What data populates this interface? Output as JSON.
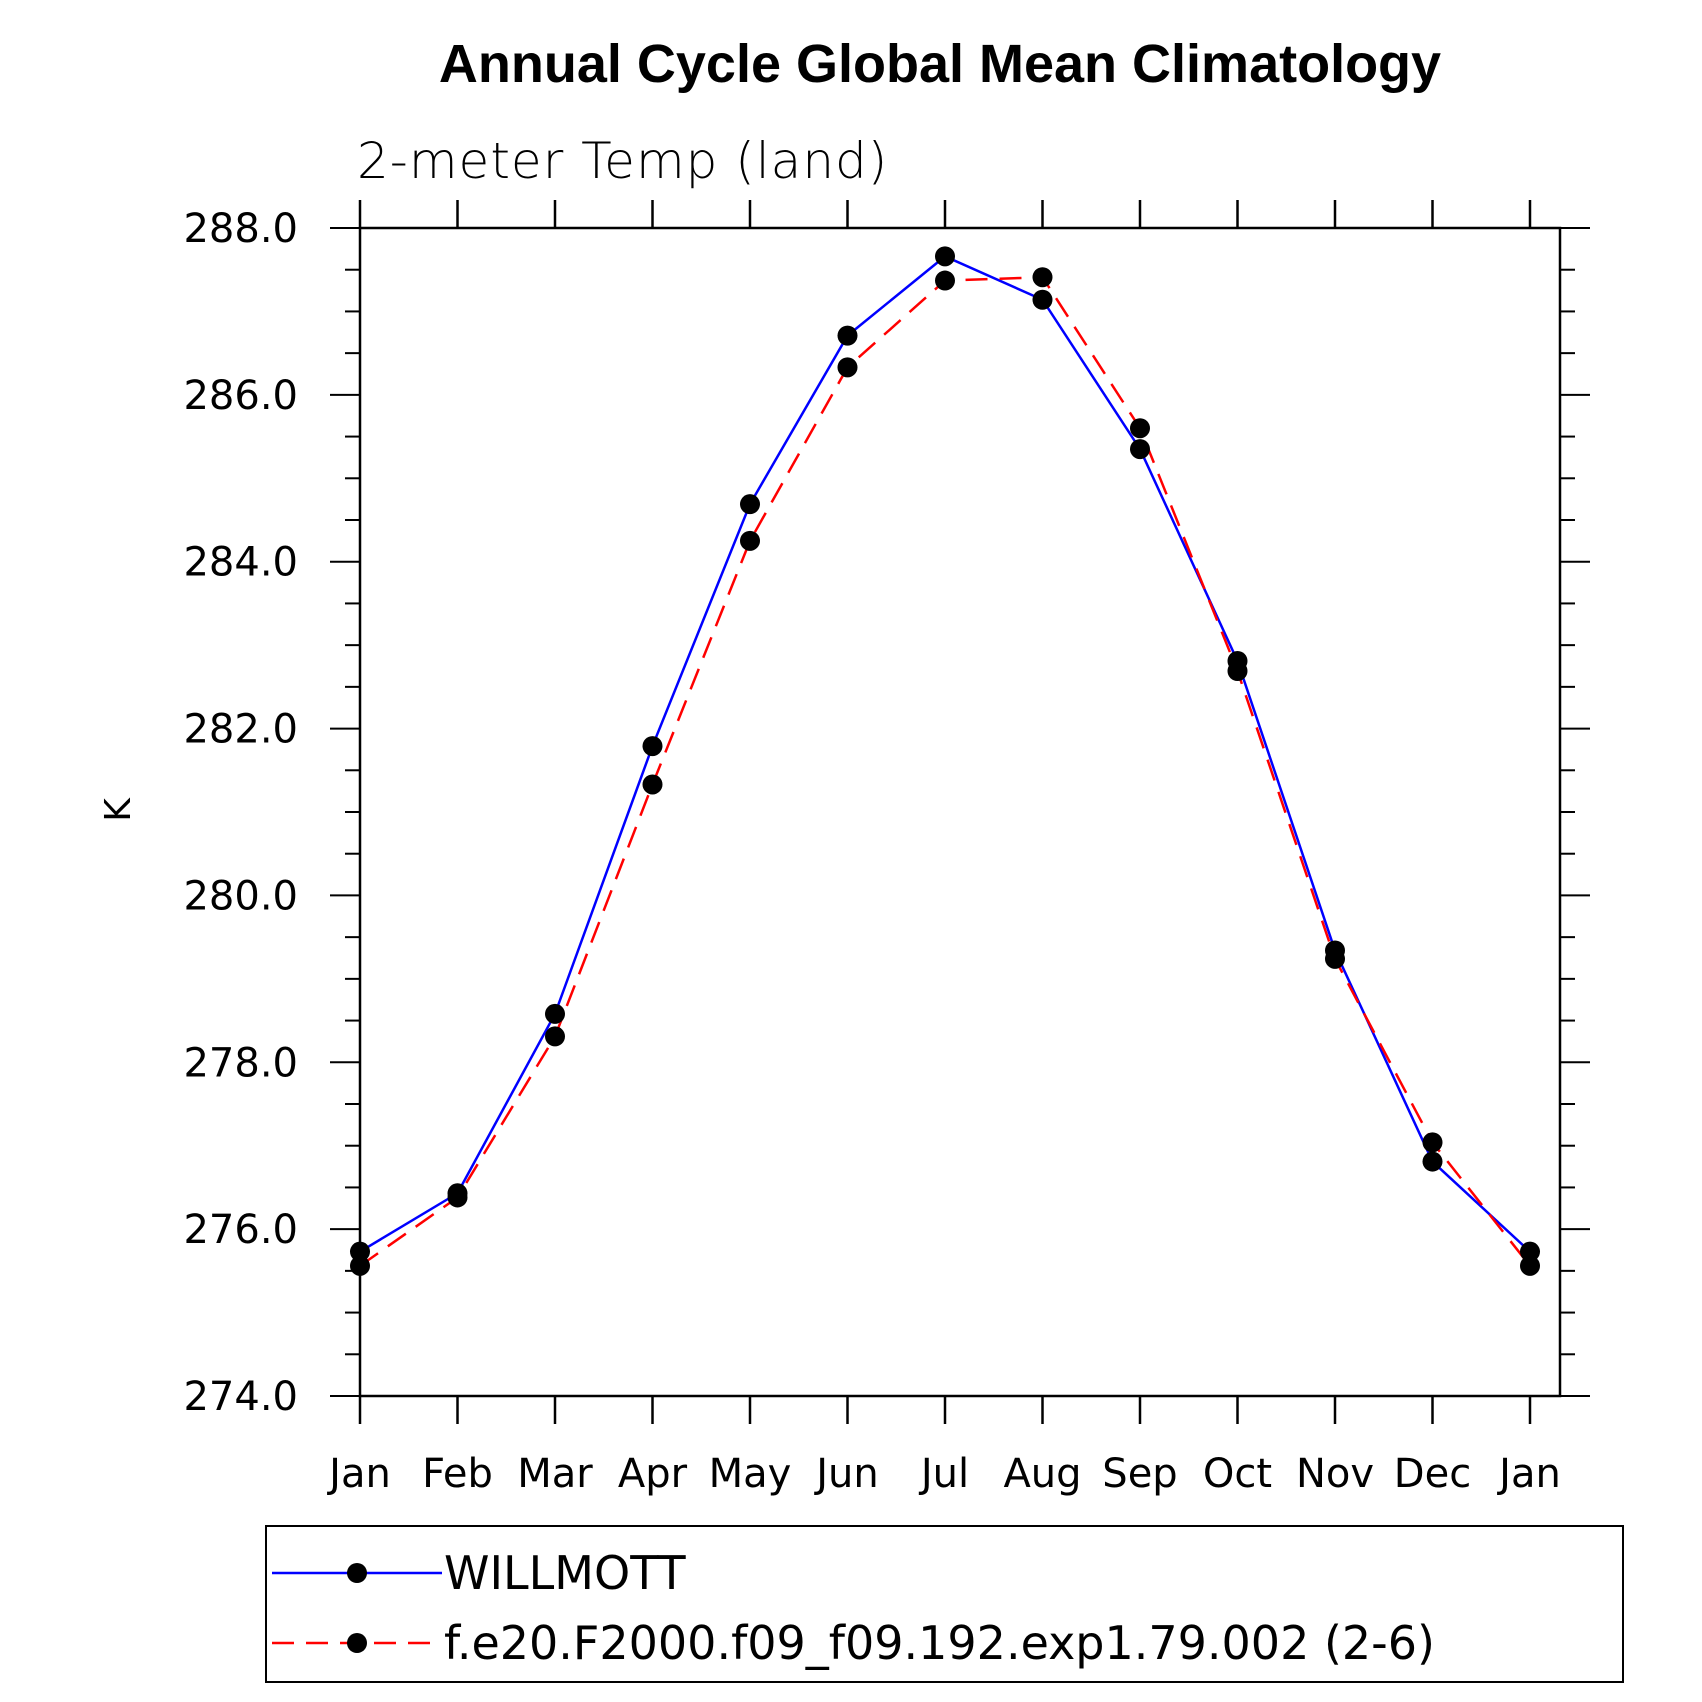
{
  "chart_data": {
    "type": "line",
    "title": "Annual Cycle Global Mean Climatology",
    "subtitle": "2-meter Temp (land)",
    "xlabel": "",
    "ylabel": "K",
    "categories": [
      "Jan",
      "Feb",
      "Mar",
      "Apr",
      "May",
      "Jun",
      "Jul",
      "Aug",
      "Sep",
      "Oct",
      "Nov",
      "Dec",
      "Jan"
    ],
    "y_ticks": [
      "274.0",
      "276.0",
      "278.0",
      "280.0",
      "282.0",
      "284.0",
      "286.0",
      "288.0"
    ],
    "ylim": [
      274,
      288
    ],
    "legend_position": "bottom",
    "grid": false,
    "series": [
      {
        "name": "WILLMOTT",
        "color": "#0000ff",
        "line_style": "solid",
        "marker": "filled-circle",
        "values": [
          275.73,
          276.43,
          278.58,
          281.79,
          284.69,
          286.71,
          287.66,
          287.14,
          285.35,
          282.81,
          279.34,
          276.81,
          275.73
        ]
      },
      {
        "name": "f.e20.F2000.f09_f09.192.exp1.79.002 (2-6)",
        "color": "#ff0000",
        "line_style": "dashed",
        "marker": "filled-circle",
        "values": [
          275.56,
          276.38,
          278.31,
          281.33,
          284.25,
          286.33,
          287.37,
          287.41,
          285.6,
          282.69,
          279.24,
          277.04,
          275.56
        ]
      }
    ]
  }
}
